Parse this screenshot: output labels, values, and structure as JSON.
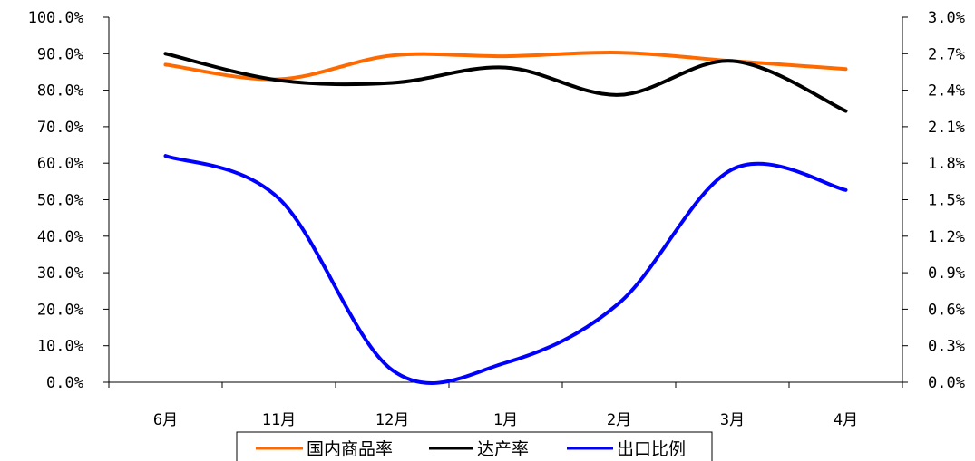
{
  "chart_data": {
    "type": "line",
    "categories": [
      "6月",
      "11月",
      "12月",
      "1月",
      "2月",
      "3月",
      "4月"
    ],
    "y_left": {
      "min": 0,
      "max": 100,
      "step": 10,
      "tick_labels": [
        "0.0%",
        "10.0%",
        "20.0%",
        "30.0%",
        "40.0%",
        "50.0%",
        "60.0%",
        "70.0%",
        "80.0%",
        "90.0%",
        "100.0%"
      ]
    },
    "y_right": {
      "min": 0,
      "max": 3,
      "step": 0.3,
      "tick_labels": [
        "0.0%",
        "0.3%",
        "0.6%",
        "0.9%",
        "1.2%",
        "1.5%",
        "1.8%",
        "2.1%",
        "2.4%",
        "2.7%",
        "3.0%"
      ]
    },
    "series": [
      {
        "name": "国内商品率",
        "axis": "left",
        "color": "#FF6A00",
        "values": [
          87,
          83,
          89.5,
          89.3,
          90.3,
          88,
          85.8
        ]
      },
      {
        "name": "达产率",
        "axis": "left",
        "color": "#000000",
        "values": [
          90,
          82.7,
          82,
          86.2,
          78.7,
          88,
          74.3
        ]
      },
      {
        "name": "出口比例",
        "axis": "right",
        "color": "#0000FF",
        "values": [
          1.86,
          1.51,
          0.1,
          0.16,
          0.65,
          1.75,
          1.58
        ]
      }
    ],
    "legend_position": "bottom",
    "grid": false
  }
}
